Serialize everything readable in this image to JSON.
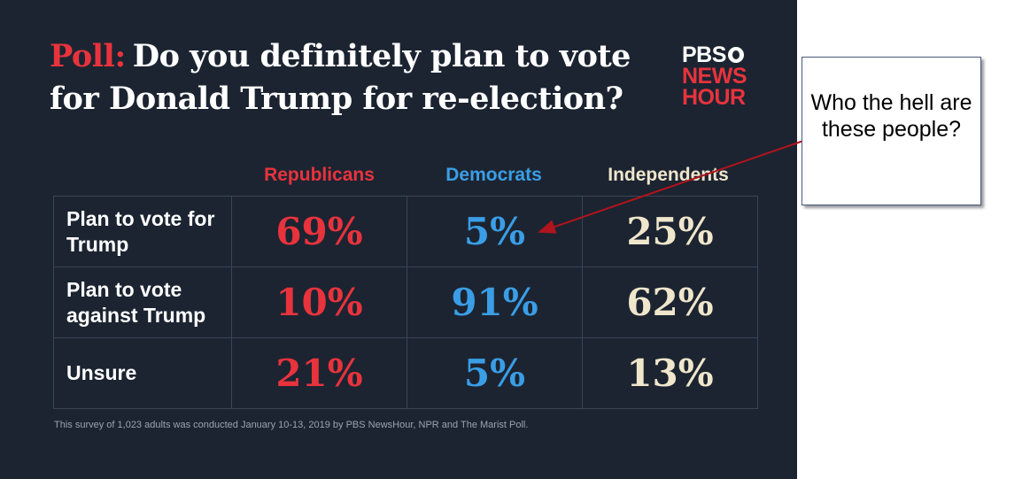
{
  "title": {
    "prefix": "Poll:",
    "text": "Do you definitely plan to vote for Donald Trump for re-election?"
  },
  "logo": {
    "line1": "PBS",
    "line2": "NEWS",
    "line3": "HOUR"
  },
  "chart_data": {
    "type": "table",
    "title": "Poll: Do you definitely plan to vote for Donald Trump for re-election?",
    "columns": [
      "Republicans",
      "Democrats",
      "Independents"
    ],
    "rows": [
      {
        "label": "Plan to vote for Trump",
        "values": [
          "69%",
          "5%",
          "25%"
        ]
      },
      {
        "label": "Plan to vote against Trump",
        "values": [
          "10%",
          "91%",
          "62%"
        ]
      },
      {
        "label": "Unsure",
        "values": [
          "21%",
          "5%",
          "13%"
        ]
      }
    ]
  },
  "colors": {
    "republicans": "#e8333d",
    "democrats": "#3a9ee6",
    "independents": "#efe6cc",
    "background": "#1c2431",
    "arrow": "#b0141c"
  },
  "footnote": "This survey of 1,023 adults was conducted January 10-13, 2019 by PBS NewsHour, NPR and The Marist Poll.",
  "callout": {
    "text": "Who the hell are these people?"
  }
}
